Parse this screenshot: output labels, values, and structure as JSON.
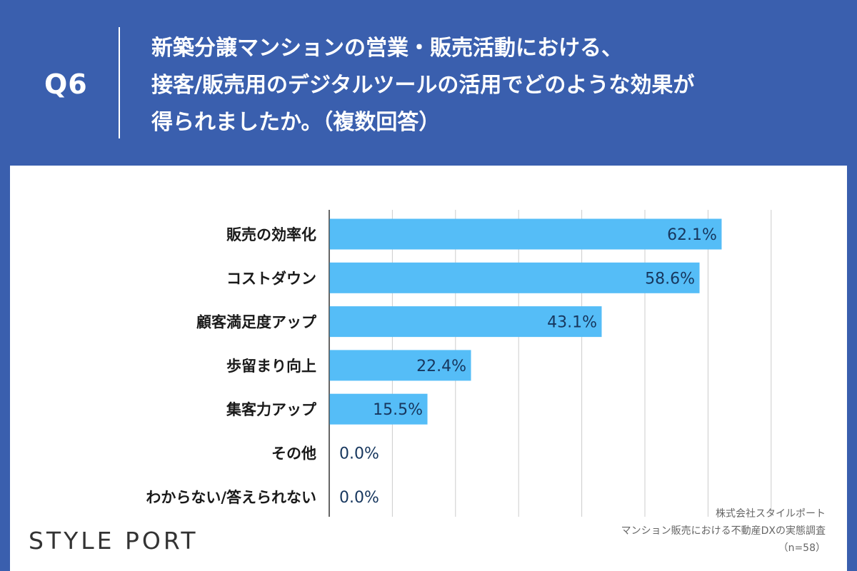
{
  "header": {
    "question_label": "Q6",
    "question_lines": [
      "新築分譲マンションの営業・販売活動における、",
      "接客/販売用のデジタルツールの活用でどのような効果が",
      "得られましたか。（複数回答）"
    ]
  },
  "branding": {
    "logo": "STYLE PORT"
  },
  "source": {
    "company": "株式会社スタイルポート",
    "survey": "マンション販売における不動産DXの実態調査",
    "sample": "（n=58）"
  },
  "colors": {
    "header_bg": "#3a5fae",
    "bar": "#55bdf7",
    "value_text": "#17375e",
    "grid": "#cccccc"
  },
  "chart_data": {
    "type": "bar",
    "orientation": "horizontal",
    "categories": [
      "販売の効率化",
      "コストダウン",
      "顧客満足度アップ",
      "歩留まり向上",
      "集客力アップ",
      "その他",
      "わからない/答えられない"
    ],
    "values": [
      62.1,
      58.6,
      43.1,
      22.4,
      15.5,
      0.0,
      0.0
    ],
    "value_labels": [
      "62.1%",
      "58.6%",
      "43.1%",
      "22.4%",
      "15.5%",
      "0.0%",
      "0.0%"
    ],
    "xlim": [
      0,
      70
    ],
    "grid": true,
    "title": "",
    "xlabel": "",
    "ylabel": ""
  }
}
